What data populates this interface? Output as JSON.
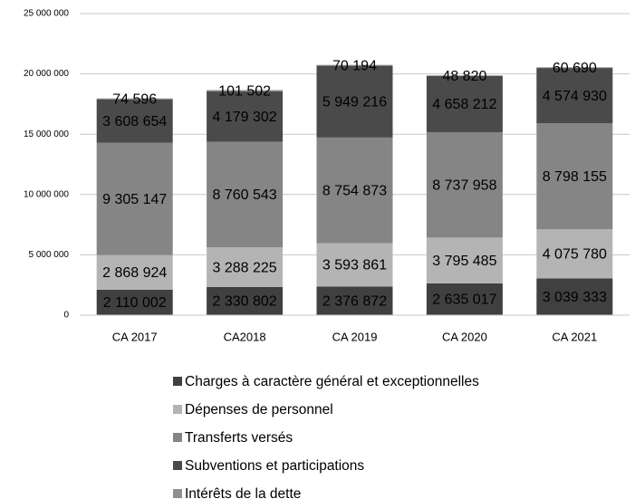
{
  "chart_data": {
    "type": "bar",
    "stacked": true,
    "categories": [
      "CA 2017",
      "CA2018",
      "CA 2019",
      "CA 2020",
      "CA 2021"
    ],
    "series": [
      {
        "name": "Charges à caractère général et exceptionnelles",
        "color": "#404040",
        "values": [
          2110002,
          2330802,
          2376872,
          2635017,
          3039333
        ],
        "value_labels": [
          "2 110 002",
          "2 330 802",
          "2 376 872",
          "2 635 017",
          "3 039 333"
        ]
      },
      {
        "name": "Dépenses de personnel",
        "color": "#b4b4b4",
        "values": [
          2868924,
          3288225,
          3593861,
          3795485,
          4075780
        ],
        "value_labels": [
          "2 868 924",
          "3 288 225",
          "3 593 861",
          "3 795 485",
          "4 075 780"
        ]
      },
      {
        "name": "Transferts versés",
        "color": "#858585",
        "values": [
          9305147,
          8760543,
          8754873,
          8737958,
          8798155
        ],
        "value_labels": [
          "9 305 147",
          "8 760 543",
          "8 754 873",
          "8 737 958",
          "8 798 155"
        ]
      },
      {
        "name": "Subventions et participations",
        "color": "#4a4a4a",
        "values": [
          3608654,
          4179302,
          5949216,
          4658212,
          4574930
        ],
        "value_labels": [
          "3 608 654",
          "4 179 302",
          "5 949 216",
          "4 658 212",
          "4 574 930"
        ]
      },
      {
        "name": "Intérêts de la dette",
        "color": "#8f8f8f",
        "values": [
          74596,
          101502,
          70194,
          48820,
          60690
        ],
        "value_labels": [
          "74 596",
          "101 502",
          "70 194",
          "48 820",
          "60 690"
        ]
      }
    ],
    "ylim": [
      0,
      25000000
    ],
    "yticks": [
      0,
      {
        "value": 5000000,
        "label": "5 000 000"
      },
      {
        "value": 10000000,
        "label": "10 000 000"
      },
      {
        "value": 15000000,
        "label": "15 000 000"
      },
      {
        "value": 20000000,
        "label": "20 000 000"
      },
      {
        "value": 25000000,
        "label": "25 000 000"
      }
    ],
    "grid": true
  }
}
